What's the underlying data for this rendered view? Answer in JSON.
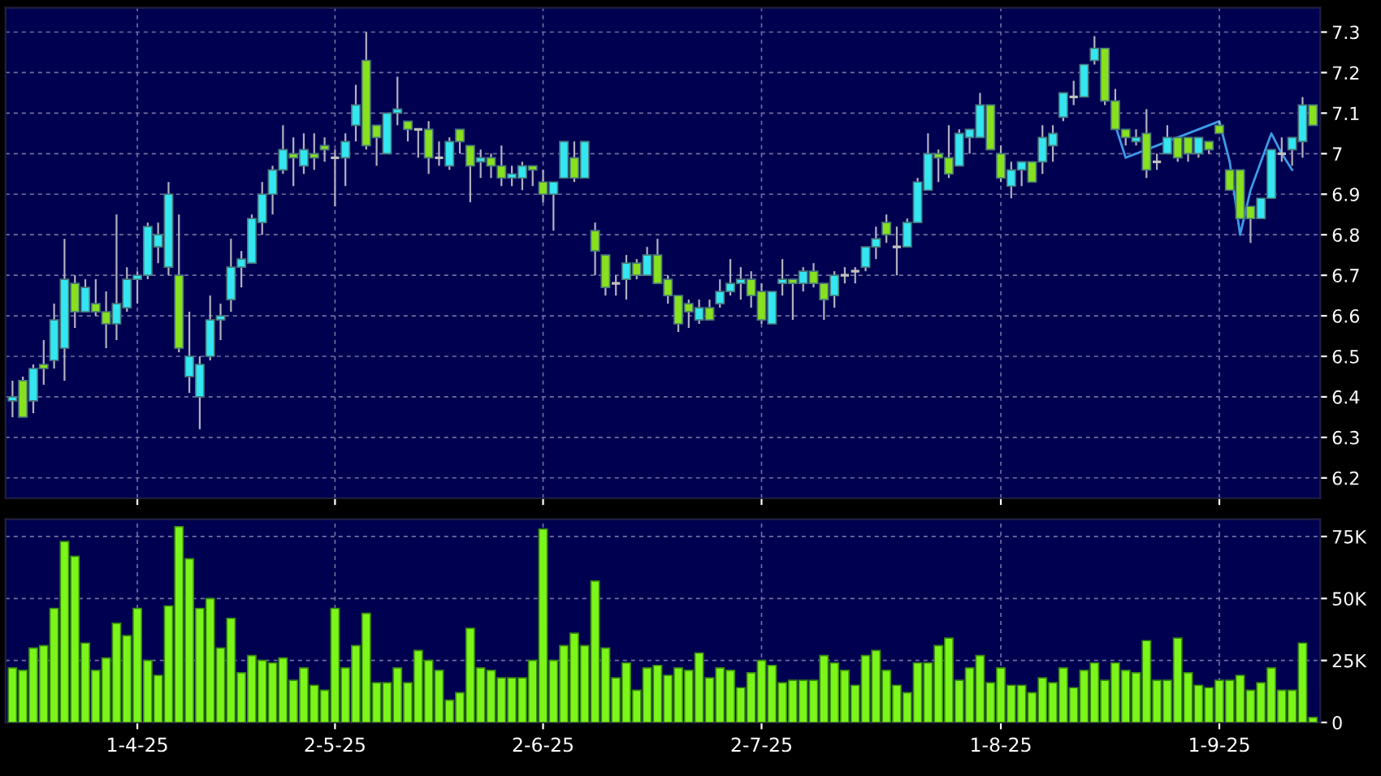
{
  "chart_data": [
    {
      "type": "candlestick",
      "tick_labels": "y",
      "grid": true,
      "categories": [
        null,
        null,
        null,
        null,
        null,
        null,
        null,
        null,
        null,
        null,
        null,
        null,
        null,
        null,
        null,
        null,
        null,
        null,
        null,
        null,
        null,
        null,
        null,
        null,
        null,
        null,
        null,
        null,
        null,
        null,
        null,
        null,
        null,
        null,
        null,
        null,
        null,
        null,
        null,
        null,
        null,
        null,
        null,
        null,
        null,
        null,
        null,
        null,
        null,
        null,
        null,
        null,
        null,
        null,
        null,
        null,
        null,
        null,
        null,
        null,
        null,
        null,
        null,
        null,
        null,
        null,
        null,
        null,
        null,
        null,
        null,
        null,
        null,
        null,
        null,
        null,
        null,
        null,
        null,
        null,
        null,
        null,
        null,
        null,
        null,
        null,
        null,
        null,
        null,
        null,
        null,
        null,
        null,
        null,
        null,
        null,
        null,
        null,
        null,
        null,
        null,
        null,
        null,
        null,
        null,
        null,
        null,
        null,
        null,
        null,
        null,
        null,
        null,
        null,
        null,
        null,
        null,
        null,
        null,
        null,
        null,
        null,
        null,
        null,
        null,
        null
      ],
      "ohlc": [
        [
          6.39,
          6.44,
          6.35,
          6.4
        ],
        [
          6.44,
          6.45,
          6.35,
          6.35
        ],
        [
          6.39,
          6.48,
          6.36,
          6.47
        ],
        [
          6.48,
          6.54,
          6.43,
          6.47
        ],
        [
          6.49,
          6.63,
          6.47,
          6.59
        ],
        [
          6.52,
          6.79,
          6.44,
          6.69
        ],
        [
          6.68,
          6.7,
          6.57,
          6.61
        ],
        [
          6.61,
          6.69,
          6.61,
          6.67
        ],
        [
          6.63,
          6.69,
          6.6,
          6.61
        ],
        [
          6.61,
          6.66,
          6.52,
          6.58
        ],
        [
          6.58,
          6.85,
          6.54,
          6.63
        ],
        [
          6.62,
          6.72,
          6.61,
          6.69
        ],
        [
          6.69,
          6.71,
          6.63,
          6.7
        ],
        [
          6.7,
          6.83,
          6.69,
          6.82
        ],
        [
          6.77,
          6.83,
          6.73,
          6.8
        ],
        [
          6.72,
          6.93,
          6.7,
          6.9
        ],
        [
          6.7,
          6.85,
          6.51,
          6.52
        ],
        [
          6.45,
          6.61,
          6.41,
          6.5
        ],
        [
          6.4,
          6.5,
          6.32,
          6.48
        ],
        [
          6.5,
          6.65,
          6.49,
          6.59
        ],
        [
          6.59,
          6.63,
          6.54,
          6.6
        ],
        [
          6.64,
          6.79,
          6.61,
          6.72
        ],
        [
          6.72,
          6.76,
          6.67,
          6.74
        ],
        [
          6.73,
          6.85,
          6.73,
          6.84
        ],
        [
          6.83,
          6.93,
          6.8,
          6.9
        ],
        [
          6.9,
          6.97,
          6.85,
          6.96
        ],
        [
          6.96,
          7.07,
          6.95,
          7.01
        ],
        [
          7.0,
          7.04,
          6.92,
          6.99
        ],
        [
          6.97,
          7.05,
          6.95,
          7.01
        ],
        [
          7.0,
          7.05,
          6.96,
          6.99
        ],
        [
          7.02,
          7.04,
          6.98,
          7.01
        ],
        [
          6.99,
          7.01,
          6.87,
          6.99
        ],
        [
          6.99,
          7.05,
          6.92,
          7.03
        ],
        [
          7.07,
          7.17,
          7.03,
          7.12
        ],
        [
          7.23,
          7.3,
          7.01,
          7.02
        ],
        [
          7.07,
          7.07,
          6.97,
          7.04
        ],
        [
          7.0,
          7.1,
          7.0,
          7.1
        ],
        [
          7.1,
          7.19,
          7.07,
          7.11
        ],
        [
          7.08,
          7.08,
          7.03,
          7.06
        ],
        [
          7.06,
          7.06,
          6.99,
          7.06
        ],
        [
          7.06,
          7.08,
          6.95,
          6.99
        ],
        [
          6.99,
          7.03,
          6.97,
          6.99
        ],
        [
          6.97,
          7.04,
          6.96,
          7.03
        ],
        [
          7.06,
          7.06,
          7.0,
          7.03
        ],
        [
          7.02,
          7.02,
          6.88,
          6.97
        ],
        [
          6.98,
          7.01,
          6.94,
          6.99
        ],
        [
          6.99,
          7.0,
          6.94,
          6.97
        ],
        [
          6.97,
          7.02,
          6.92,
          6.94
        ],
        [
          6.94,
          6.97,
          6.92,
          6.95
        ],
        [
          6.94,
          6.98,
          6.91,
          6.97
        ],
        [
          6.97,
          6.97,
          6.92,
          6.96
        ],
        [
          6.93,
          6.96,
          6.88,
          6.9
        ],
        [
          6.9,
          6.93,
          6.81,
          6.93
        ],
        [
          6.94,
          7.03,
          6.94,
          7.03
        ],
        [
          6.99,
          7.03,
          6.93,
          6.94
        ],
        [
          6.94,
          7.03,
          6.94,
          7.03
        ],
        [
          6.81,
          6.83,
          6.7,
          6.76
        ],
        [
          6.75,
          6.75,
          6.65,
          6.67
        ],
        [
          6.68,
          6.7,
          6.65,
          6.68
        ],
        [
          6.69,
          6.75,
          6.64,
          6.73
        ],
        [
          6.73,
          6.74,
          6.69,
          6.7
        ],
        [
          6.7,
          6.77,
          6.7,
          6.75
        ],
        [
          6.75,
          6.79,
          6.68,
          6.68
        ],
        [
          6.69,
          6.7,
          6.63,
          6.65
        ],
        [
          6.65,
          6.65,
          6.56,
          6.58
        ],
        [
          6.63,
          6.64,
          6.57,
          6.61
        ],
        [
          6.59,
          6.64,
          6.58,
          6.62
        ],
        [
          6.62,
          6.64,
          6.59,
          6.59
        ],
        [
          6.63,
          6.69,
          6.62,
          6.66
        ],
        [
          6.66,
          6.74,
          6.65,
          6.68
        ],
        [
          6.68,
          6.72,
          6.64,
          6.69
        ],
        [
          6.69,
          6.71,
          6.62,
          6.65
        ],
        [
          6.66,
          6.68,
          6.58,
          6.59
        ],
        [
          6.58,
          6.66,
          6.58,
          6.66
        ],
        [
          6.68,
          6.74,
          6.65,
          6.69
        ],
        [
          6.69,
          6.69,
          6.59,
          6.68
        ],
        [
          6.68,
          6.72,
          6.66,
          6.71
        ],
        [
          6.71,
          6.73,
          6.67,
          6.68
        ],
        [
          6.68,
          6.68,
          6.59,
          6.64
        ],
        [
          6.65,
          6.71,
          6.62,
          6.7
        ],
        [
          6.7,
          6.72,
          6.68,
          6.7
        ],
        [
          6.71,
          6.72,
          6.68,
          6.71
        ],
        [
          6.72,
          6.77,
          6.71,
          6.77
        ],
        [
          6.77,
          6.82,
          6.74,
          6.79
        ],
        [
          6.83,
          6.85,
          6.78,
          6.8
        ],
        [
          6.77,
          6.82,
          6.7,
          6.77
        ],
        [
          6.77,
          6.84,
          6.77,
          6.83
        ],
        [
          6.83,
          6.94,
          6.83,
          6.93
        ],
        [
          6.91,
          7.05,
          6.91,
          7.0
        ],
        [
          7.0,
          7.01,
          6.93,
          6.99
        ],
        [
          6.99,
          7.07,
          6.94,
          6.95
        ],
        [
          6.97,
          7.06,
          6.97,
          7.05
        ],
        [
          7.04,
          7.06,
          7.0,
          7.06
        ],
        [
          7.04,
          7.15,
          7.04,
          7.12
        ],
        [
          7.12,
          7.12,
          7.01,
          7.01
        ],
        [
          7.0,
          7.02,
          6.93,
          6.94
        ],
        [
          6.92,
          6.98,
          6.89,
          6.96
        ],
        [
          6.96,
          6.98,
          6.92,
          6.98
        ],
        [
          6.98,
          6.98,
          6.93,
          6.93
        ],
        [
          6.98,
          7.07,
          6.95,
          7.04
        ],
        [
          7.02,
          7.07,
          6.98,
          7.05
        ],
        [
          7.09,
          7.15,
          7.08,
          7.15
        ],
        [
          7.14,
          7.18,
          7.12,
          7.14
        ],
        [
          7.14,
          7.22,
          7.14,
          7.22
        ],
        [
          7.23,
          7.29,
          7.22,
          7.26
        ],
        [
          7.26,
          7.26,
          7.12,
          7.13
        ],
        [
          7.13,
          7.16,
          7.06,
          7.06
        ],
        [
          7.06,
          7.06,
          7.02,
          7.04
        ],
        [
          7.03,
          7.06,
          7.02,
          7.04
        ],
        [
          7.05,
          7.11,
          6.94,
          6.96
        ],
        [
          6.98,
          7.0,
          6.96,
          6.98
        ],
        [
          7.0,
          7.07,
          7.0,
          7.04
        ],
        [
          7.04,
          7.04,
          6.98,
          6.99
        ],
        [
          7.04,
          7.04,
          6.98,
          7.0
        ],
        [
          7.0,
          7.04,
          6.99,
          7.04
        ],
        [
          7.03,
          7.03,
          7.0,
          7.01
        ],
        [
          7.07,
          7.08,
          7.05,
          7.05
        ],
        [
          6.96,
          6.96,
          6.91,
          6.91
        ],
        [
          6.96,
          6.96,
          6.84,
          6.84
        ],
        [
          6.87,
          6.87,
          6.78,
          6.84
        ],
        [
          6.84,
          6.89,
          6.84,
          6.89
        ],
        [
          6.89,
          7.01,
          6.89,
          7.01
        ],
        [
          7.0,
          7.04,
          6.98,
          7.0
        ],
        [
          7.01,
          7.04,
          6.97,
          7.04
        ],
        [
          7.03,
          7.14,
          6.99,
          7.12
        ],
        [
          7.12,
          7.12,
          7.07,
          7.07
        ]
      ],
      "colors": [
        "#33e6f2",
        "#88e01e",
        "#33e6f2",
        "#88e01e",
        "#33e6f2",
        "#33e6f2",
        "#88e01e",
        "#33e6f2",
        "#88e01e",
        "#88e01e",
        "#33e6f2",
        "#33e6f2",
        "#33e6f2",
        "#33e6f2",
        "#33e6f2",
        "#33e6f2",
        "#88e01e",
        "#33e6f2",
        "#33e6f2",
        "#33e6f2",
        "#33e6f2",
        "#33e6f2",
        "#33e6f2",
        "#33e6f2",
        "#33e6f2",
        "#33e6f2",
        "#33e6f2",
        "#88e01e",
        "#33e6f2",
        "#88e01e",
        "#88e01e",
        "#c0c0c0",
        "#33e6f2",
        "#33e6f2",
        "#88e01e",
        "#88e01e",
        "#33e6f2",
        "#33e6f2",
        "#88e01e",
        "#c0c0c0",
        "#88e01e",
        "#c0c0c0",
        "#33e6f2",
        "#88e01e",
        "#88e01e",
        "#33e6f2",
        "#88e01e",
        "#88e01e",
        "#33e6f2",
        "#33e6f2",
        "#88e01e",
        "#88e01e",
        "#33e6f2",
        "#33e6f2",
        "#88e01e",
        "#33e6f2",
        "#88e01e",
        "#88e01e",
        "#c0c0c0",
        "#33e6f2",
        "#88e01e",
        "#33e6f2",
        "#88e01e",
        "#88e01e",
        "#88e01e",
        "#88e01e",
        "#33e6f2",
        "#88e01e",
        "#33e6f2",
        "#33e6f2",
        "#33e6f2",
        "#88e01e",
        "#88e01e",
        "#33e6f2",
        "#33e6f2",
        "#88e01e",
        "#33e6f2",
        "#88e01e",
        "#88e01e",
        "#33e6f2",
        "#c0c0c0",
        "#c0c0c0",
        "#33e6f2",
        "#33e6f2",
        "#88e01e",
        "#c0c0c0",
        "#33e6f2",
        "#33e6f2",
        "#33e6f2",
        "#88e01e",
        "#88e01e",
        "#33e6f2",
        "#33e6f2",
        "#33e6f2",
        "#88e01e",
        "#88e01e",
        "#33e6f2",
        "#33e6f2",
        "#88e01e",
        "#33e6f2",
        "#33e6f2",
        "#33e6f2",
        "#c0c0c0",
        "#33e6f2",
        "#33e6f2",
        "#88e01e",
        "#88e01e",
        "#88e01e",
        "#33e6f2",
        "#88e01e",
        "#c0c0c0",
        "#33e6f2",
        "#88e01e",
        "#88e01e",
        "#33e6f2",
        "#88e01e",
        "#88e01e",
        "#88e01e",
        "#88e01e",
        "#88e01e",
        "#33e6f2",
        "#33e6f2",
        "#c0c0c0",
        "#33e6f2",
        "#33e6f2",
        "#88e01e"
      ],
      "series": [
        {
          "type": "line",
          "color": "#3d9be9",
          "values": [
            null,
            null,
            null,
            null,
            null,
            null,
            null,
            null,
            null,
            null,
            null,
            null,
            null,
            null,
            null,
            null,
            null,
            null,
            null,
            null,
            null,
            null,
            null,
            null,
            null,
            null,
            null,
            null,
            null,
            null,
            null,
            null,
            null,
            null,
            null,
            null,
            null,
            null,
            null,
            null,
            null,
            null,
            null,
            null,
            null,
            null,
            null,
            null,
            null,
            null,
            null,
            null,
            null,
            null,
            null,
            null,
            null,
            null,
            null,
            null,
            null,
            null,
            null,
            null,
            null,
            null,
            null,
            null,
            null,
            null,
            null,
            null,
            null,
            null,
            null,
            null,
            null,
            null,
            null,
            null,
            null,
            null,
            null,
            null,
            null,
            null,
            null,
            null,
            null,
            null,
            null,
            null,
            null,
            null,
            null,
            null,
            null,
            null,
            null,
            null,
            null,
            null,
            null,
            null,
            null,
            null,
            7.07,
            6.99,
            7.0,
            7.01,
            7.02,
            7.03,
            7.04,
            7.05,
            7.06,
            7.07,
            7.08,
            6.98,
            6.8,
            6.91,
            6.98,
            7.05,
            7.0,
            6.96,
            null,
            null
          ]
        }
      ],
      "ylim": [
        6.15,
        7.36
      ],
      "yticks": [
        6.2,
        6.3,
        6.4,
        6.5,
        6.6,
        6.7,
        6.8,
        6.9,
        7,
        7.1,
        7.2,
        7.3
      ]
    },
    {
      "type": "bar",
      "grid": true,
      "color": "#7cf51a",
      "categories": [
        null,
        null,
        null,
        null,
        null,
        null,
        null,
        null,
        null,
        null,
        null,
        null,
        "1-4-25",
        null,
        null,
        null,
        null,
        null,
        null,
        null,
        null,
        null,
        null,
        null,
        null,
        null,
        null,
        null,
        null,
        null,
        null,
        "2-5-25",
        null,
        null,
        null,
        null,
        null,
        null,
        null,
        null,
        null,
        null,
        null,
        null,
        null,
        null,
        null,
        null,
        null,
        null,
        null,
        "2-6-25",
        null,
        null,
        null,
        null,
        null,
        null,
        null,
        null,
        null,
        null,
        null,
        null,
        null,
        null,
        null,
        null,
        null,
        null,
        null,
        null,
        "2-7-25",
        null,
        null,
        null,
        null,
        null,
        null,
        null,
        null,
        null,
        null,
        null,
        null,
        null,
        null,
        null,
        null,
        null,
        null,
        null,
        null,
        null,
        null,
        "1-8-25",
        null,
        null,
        null,
        null,
        null,
        null,
        null,
        null,
        null,
        null,
        null,
        null,
        null,
        null,
        null,
        null,
        null,
        null,
        null,
        null,
        "1-9-25",
        null,
        null,
        null,
        null,
        null,
        null,
        null,
        null,
        null
      ],
      "values": [
        22,
        21,
        30,
        31,
        46,
        73,
        67,
        32,
        21,
        26,
        40,
        35,
        46,
        25,
        19,
        47,
        79,
        66,
        46,
        50,
        30,
        42,
        20,
        27,
        25,
        24,
        26,
        17,
        22,
        15,
        13,
        46,
        22,
        31,
        44,
        16,
        16,
        22,
        16,
        29,
        25,
        21,
        9,
        12,
        38,
        22,
        21,
        18,
        18,
        18,
        25,
        78,
        25,
        31,
        36,
        31,
        57,
        30,
        18,
        24,
        13,
        22,
        23,
        19,
        22,
        21,
        28,
        18,
        22,
        21,
        14,
        20,
        25,
        23,
        16,
        17,
        17,
        17,
        27,
        24,
        21,
        15,
        27,
        29,
        21,
        15,
        12,
        24,
        24,
        31,
        34,
        17,
        22,
        27,
        16,
        22,
        15,
        15,
        12,
        18,
        16,
        22,
        14,
        21,
        24,
        17,
        24,
        21,
        20,
        33,
        17,
        17,
        34,
        20,
        15,
        14,
        17,
        17,
        19,
        13,
        16,
        22,
        13,
        13,
        32,
        2
      ],
      "ylim": [
        0,
        82
      ],
      "yticks": [
        0,
        {
          "value": 25,
          "label": "25K"
        },
        {
          "value": 50,
          "label": "50K"
        },
        {
          "value": 75,
          "label": "75K"
        }
      ]
    }
  ]
}
